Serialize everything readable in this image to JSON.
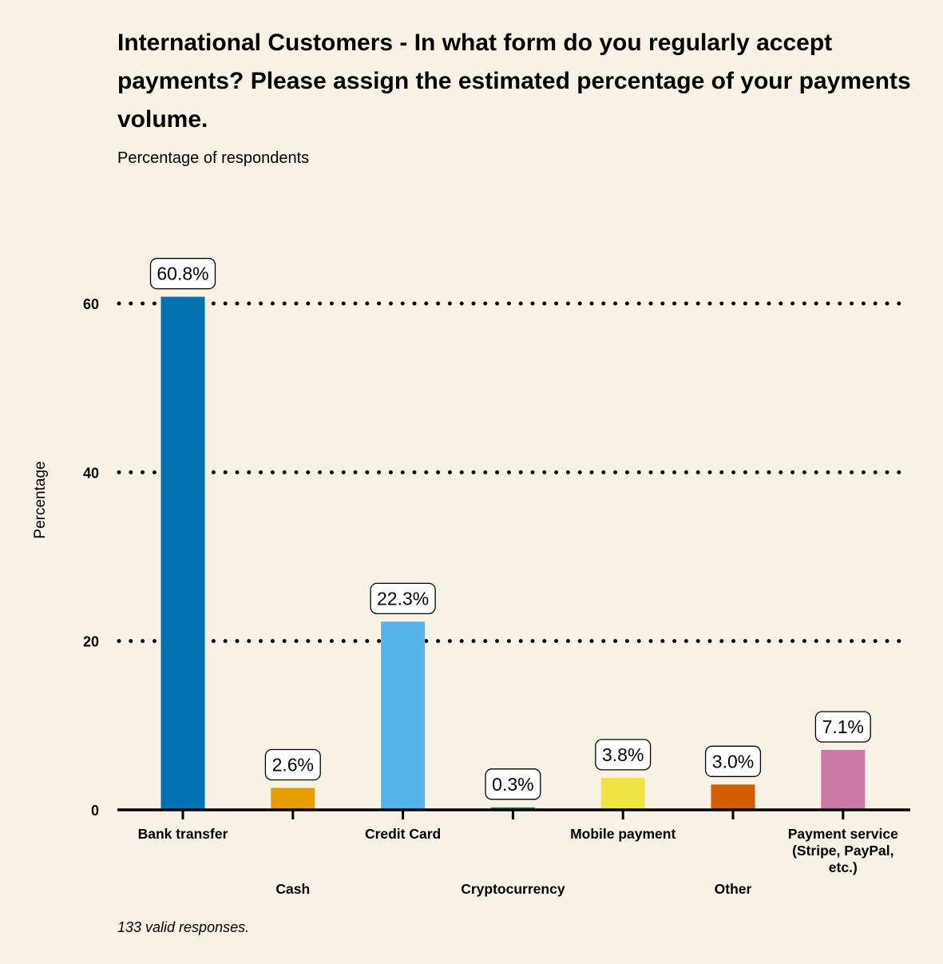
{
  "chart_data": {
    "type": "bar",
    "title": "International Customers - In what form do you regularly accept payments? Please assign the estimated percentage of your payments volume.",
    "subtitle": "Percentage of respondents",
    "ylabel": "Percentage",
    "xlabel": "",
    "footnote": "133 valid responses.",
    "ylim": [
      0,
      60
    ],
    "yticks": [
      0,
      20,
      40,
      60
    ],
    "grid": "dotted horizontal",
    "categories": [
      "Bank transfer",
      "Cash",
      "Credit Card",
      "Cryptocurrency",
      "Mobile payment",
      "Other",
      "Payment service (Stripe, PayPal, etc.)"
    ],
    "category_label_lines": [
      [
        "Bank transfer"
      ],
      [
        "Cash"
      ],
      [
        "Credit Card"
      ],
      [
        "Cryptocurrency"
      ],
      [
        "Mobile payment"
      ],
      [
        "Other"
      ],
      [
        "Payment service",
        "(Stripe, PayPal,",
        "etc.)"
      ]
    ],
    "values": [
      60.8,
      2.6,
      22.3,
      0.3,
      3.8,
      3.0,
      7.1
    ],
    "value_labels": [
      "60.8%",
      "2.6%",
      "22.3%",
      "0.3%",
      "3.8%",
      "3.0%",
      "7.1%"
    ],
    "colors": [
      "#0072b2",
      "#e69f00",
      "#56b4e9",
      "#009e73",
      "#f0e442",
      "#d55e00",
      "#cc79a7"
    ]
  }
}
